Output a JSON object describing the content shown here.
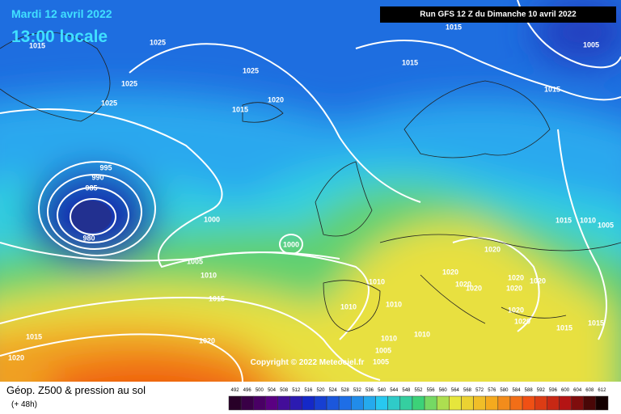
{
  "header": {
    "date": "Mardi 12 avril 2022",
    "time": "13:00 locale",
    "run": "Run GFS 12 Z du Dimanche 10 avril 2022"
  },
  "copyright": "Copyright © 2022 Meteociel.fr",
  "isobars": [
    "1015",
    "1025",
    "1025",
    "1025",
    "1025",
    "1015",
    "1020",
    "1015",
    "1015",
    "1005",
    "1015",
    "995",
    "990",
    "985",
    "980",
    "1000",
    "1000",
    "1005",
    "1010",
    "1015",
    "1015",
    "1020",
    "1020",
    "1010",
    "1010",
    "1010",
    "1010",
    "1010",
    "1005",
    "1005",
    "1020",
    "1020",
    "1020",
    "1020",
    "1020",
    "1020",
    "1020",
    "1020",
    "1020",
    "1015",
    "1010",
    "1005",
    "1015",
    "1015"
  ],
  "legend": {
    "title": "Géop. Z500 & pression au sol",
    "lead": "(+ 48h)",
    "scale": [
      492,
      496,
      500,
      504,
      508,
      512,
      516,
      520,
      524,
      528,
      532,
      536,
      540,
      544,
      548,
      552,
      556,
      560,
      564,
      568,
      572,
      576,
      580,
      584,
      588,
      592,
      596,
      600,
      604,
      608,
      612
    ]
  }
}
